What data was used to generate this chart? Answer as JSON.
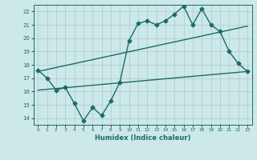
{
  "xlabel": "Humidex (Indice chaleur)",
  "bg_color": "#cde8e8",
  "grid_color": "#aed0d0",
  "line_color": "#1a6b6b",
  "xlim": [
    -0.5,
    23.5
  ],
  "ylim": [
    13.5,
    22.5
  ],
  "xticks": [
    0,
    1,
    2,
    3,
    4,
    5,
    6,
    7,
    8,
    9,
    10,
    11,
    12,
    13,
    14,
    15,
    16,
    17,
    18,
    19,
    20,
    21,
    22,
    23
  ],
  "yticks": [
    14,
    15,
    16,
    17,
    18,
    19,
    20,
    21,
    22
  ],
  "zigzag_x": [
    0,
    1,
    2,
    3,
    4,
    5,
    6,
    7,
    8,
    9,
    10,
    11,
    12,
    13,
    14,
    15,
    16,
    17,
    18,
    19,
    20,
    21,
    22,
    23
  ],
  "zigzag_y": [
    17.6,
    17.0,
    16.1,
    16.3,
    15.1,
    13.8,
    14.8,
    14.2,
    15.3,
    16.7,
    19.8,
    21.1,
    21.3,
    21.0,
    21.3,
    21.8,
    22.4,
    21.0,
    22.2,
    21.0,
    20.5,
    19.0,
    18.1,
    17.5
  ],
  "line2_x": [
    0,
    23
  ],
  "line2_y": [
    17.5,
    20.9
  ],
  "line3_x": [
    0,
    23
  ],
  "line3_y": [
    16.1,
    17.5
  ],
  "marker": "D",
  "markersize": 2.5,
  "linewidth": 1.0
}
